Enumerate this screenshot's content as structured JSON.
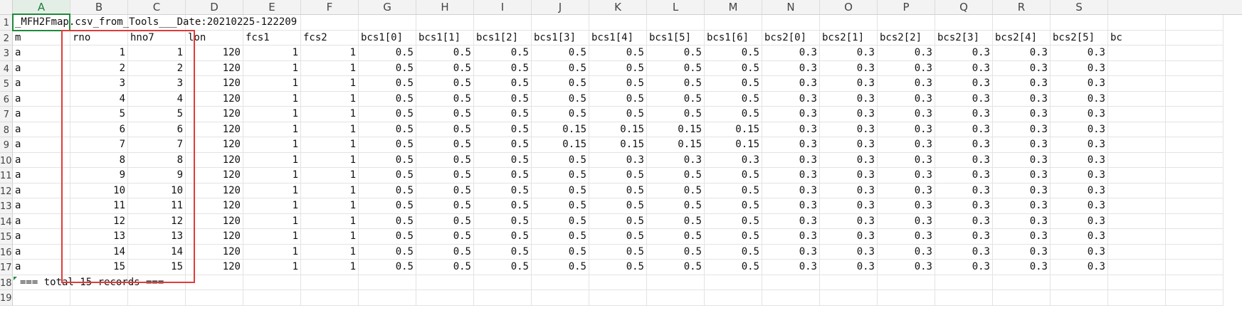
{
  "columns": [
    "A",
    "B",
    "C",
    "D",
    "E",
    "F",
    "G",
    "H",
    "I",
    "J",
    "K",
    "L",
    "M",
    "N",
    "O",
    "P",
    "Q",
    "R",
    "S"
  ],
  "active_column": "A",
  "row_labels": [
    "1",
    "2",
    "3",
    "4",
    "5",
    "6",
    "7",
    "8",
    "9",
    "10",
    "11",
    "12",
    "13",
    "14",
    "15",
    "16",
    "17",
    "18",
    "19"
  ],
  "title_row": "_MFH2Fmap.csv_from_Tools___Date:20210225-122209",
  "headers": [
    "m",
    "rno",
    "hno7",
    "lon",
    "fcs1",
    "fcs2",
    "bcs1[0]",
    "bcs1[1]",
    "bcs1[2]",
    "bcs1[3]",
    "bcs1[4]",
    "bcs1[5]",
    "bcs1[6]",
    "bcs2[0]",
    "bcs2[1]",
    "bcs2[2]",
    "bcs2[3]",
    "bcs2[4]",
    "bcs2[5]",
    "bc"
  ],
  "rows": [
    [
      "a",
      "1",
      "1",
      "120",
      "1",
      "1",
      "0.5",
      "0.5",
      "0.5",
      "0.5",
      "0.5",
      "0.5",
      "0.5",
      "0.3",
      "0.3",
      "0.3",
      "0.3",
      "0.3",
      "0.3"
    ],
    [
      "a",
      "2",
      "2",
      "120",
      "1",
      "1",
      "0.5",
      "0.5",
      "0.5",
      "0.5",
      "0.5",
      "0.5",
      "0.5",
      "0.3",
      "0.3",
      "0.3",
      "0.3",
      "0.3",
      "0.3"
    ],
    [
      "a",
      "3",
      "3",
      "120",
      "1",
      "1",
      "0.5",
      "0.5",
      "0.5",
      "0.5",
      "0.5",
      "0.5",
      "0.5",
      "0.3",
      "0.3",
      "0.3",
      "0.3",
      "0.3",
      "0.3"
    ],
    [
      "a",
      "4",
      "4",
      "120",
      "1",
      "1",
      "0.5",
      "0.5",
      "0.5",
      "0.5",
      "0.5",
      "0.5",
      "0.5",
      "0.3",
      "0.3",
      "0.3",
      "0.3",
      "0.3",
      "0.3"
    ],
    [
      "a",
      "5",
      "5",
      "120",
      "1",
      "1",
      "0.5",
      "0.5",
      "0.5",
      "0.5",
      "0.5",
      "0.5",
      "0.5",
      "0.3",
      "0.3",
      "0.3",
      "0.3",
      "0.3",
      "0.3"
    ],
    [
      "a",
      "6",
      "6",
      "120",
      "1",
      "1",
      "0.5",
      "0.5",
      "0.5",
      "0.15",
      "0.15",
      "0.15",
      "0.15",
      "0.3",
      "0.3",
      "0.3",
      "0.3",
      "0.3",
      "0.3"
    ],
    [
      "a",
      "7",
      "7",
      "120",
      "1",
      "1",
      "0.5",
      "0.5",
      "0.5",
      "0.15",
      "0.15",
      "0.15",
      "0.15",
      "0.3",
      "0.3",
      "0.3",
      "0.3",
      "0.3",
      "0.3"
    ],
    [
      "a",
      "8",
      "8",
      "120",
      "1",
      "1",
      "0.5",
      "0.5",
      "0.5",
      "0.5",
      "0.3",
      "0.3",
      "0.3",
      "0.3",
      "0.3",
      "0.3",
      "0.3",
      "0.3",
      "0.3"
    ],
    [
      "a",
      "9",
      "9",
      "120",
      "1",
      "1",
      "0.5",
      "0.5",
      "0.5",
      "0.5",
      "0.5",
      "0.5",
      "0.5",
      "0.3",
      "0.3",
      "0.3",
      "0.3",
      "0.3",
      "0.3"
    ],
    [
      "a",
      "10",
      "10",
      "120",
      "1",
      "1",
      "0.5",
      "0.5",
      "0.5",
      "0.5",
      "0.5",
      "0.5",
      "0.5",
      "0.3",
      "0.3",
      "0.3",
      "0.3",
      "0.3",
      "0.3"
    ],
    [
      "a",
      "11",
      "11",
      "120",
      "1",
      "1",
      "0.5",
      "0.5",
      "0.5",
      "0.5",
      "0.5",
      "0.5",
      "0.5",
      "0.3",
      "0.3",
      "0.3",
      "0.3",
      "0.3",
      "0.3"
    ],
    [
      "a",
      "12",
      "12",
      "120",
      "1",
      "1",
      "0.5",
      "0.5",
      "0.5",
      "0.5",
      "0.5",
      "0.5",
      "0.5",
      "0.3",
      "0.3",
      "0.3",
      "0.3",
      "0.3",
      "0.3"
    ],
    [
      "a",
      "13",
      "13",
      "120",
      "1",
      "1",
      "0.5",
      "0.5",
      "0.5",
      "0.5",
      "0.5",
      "0.5",
      "0.5",
      "0.3",
      "0.3",
      "0.3",
      "0.3",
      "0.3",
      "0.3"
    ],
    [
      "a",
      "14",
      "14",
      "120",
      "1",
      "1",
      "0.5",
      "0.5",
      "0.5",
      "0.5",
      "0.5",
      "0.5",
      "0.5",
      "0.3",
      "0.3",
      "0.3",
      "0.3",
      "0.3",
      "0.3"
    ],
    [
      "a",
      "15",
      "15",
      "120",
      "1",
      "1",
      "0.5",
      "0.5",
      "0.5",
      "0.5",
      "0.5",
      "0.5",
      "0.5",
      "0.3",
      "0.3",
      "0.3",
      "0.3",
      "0.3",
      "0.3"
    ]
  ],
  "footer_row": "=== total 15 records ===",
  "colors": {
    "selection_border": "#1f8a3b",
    "annotation_box": "#e03a3a",
    "header_bg": "#f3f3f3",
    "gridline": "#e3e3e3"
  }
}
